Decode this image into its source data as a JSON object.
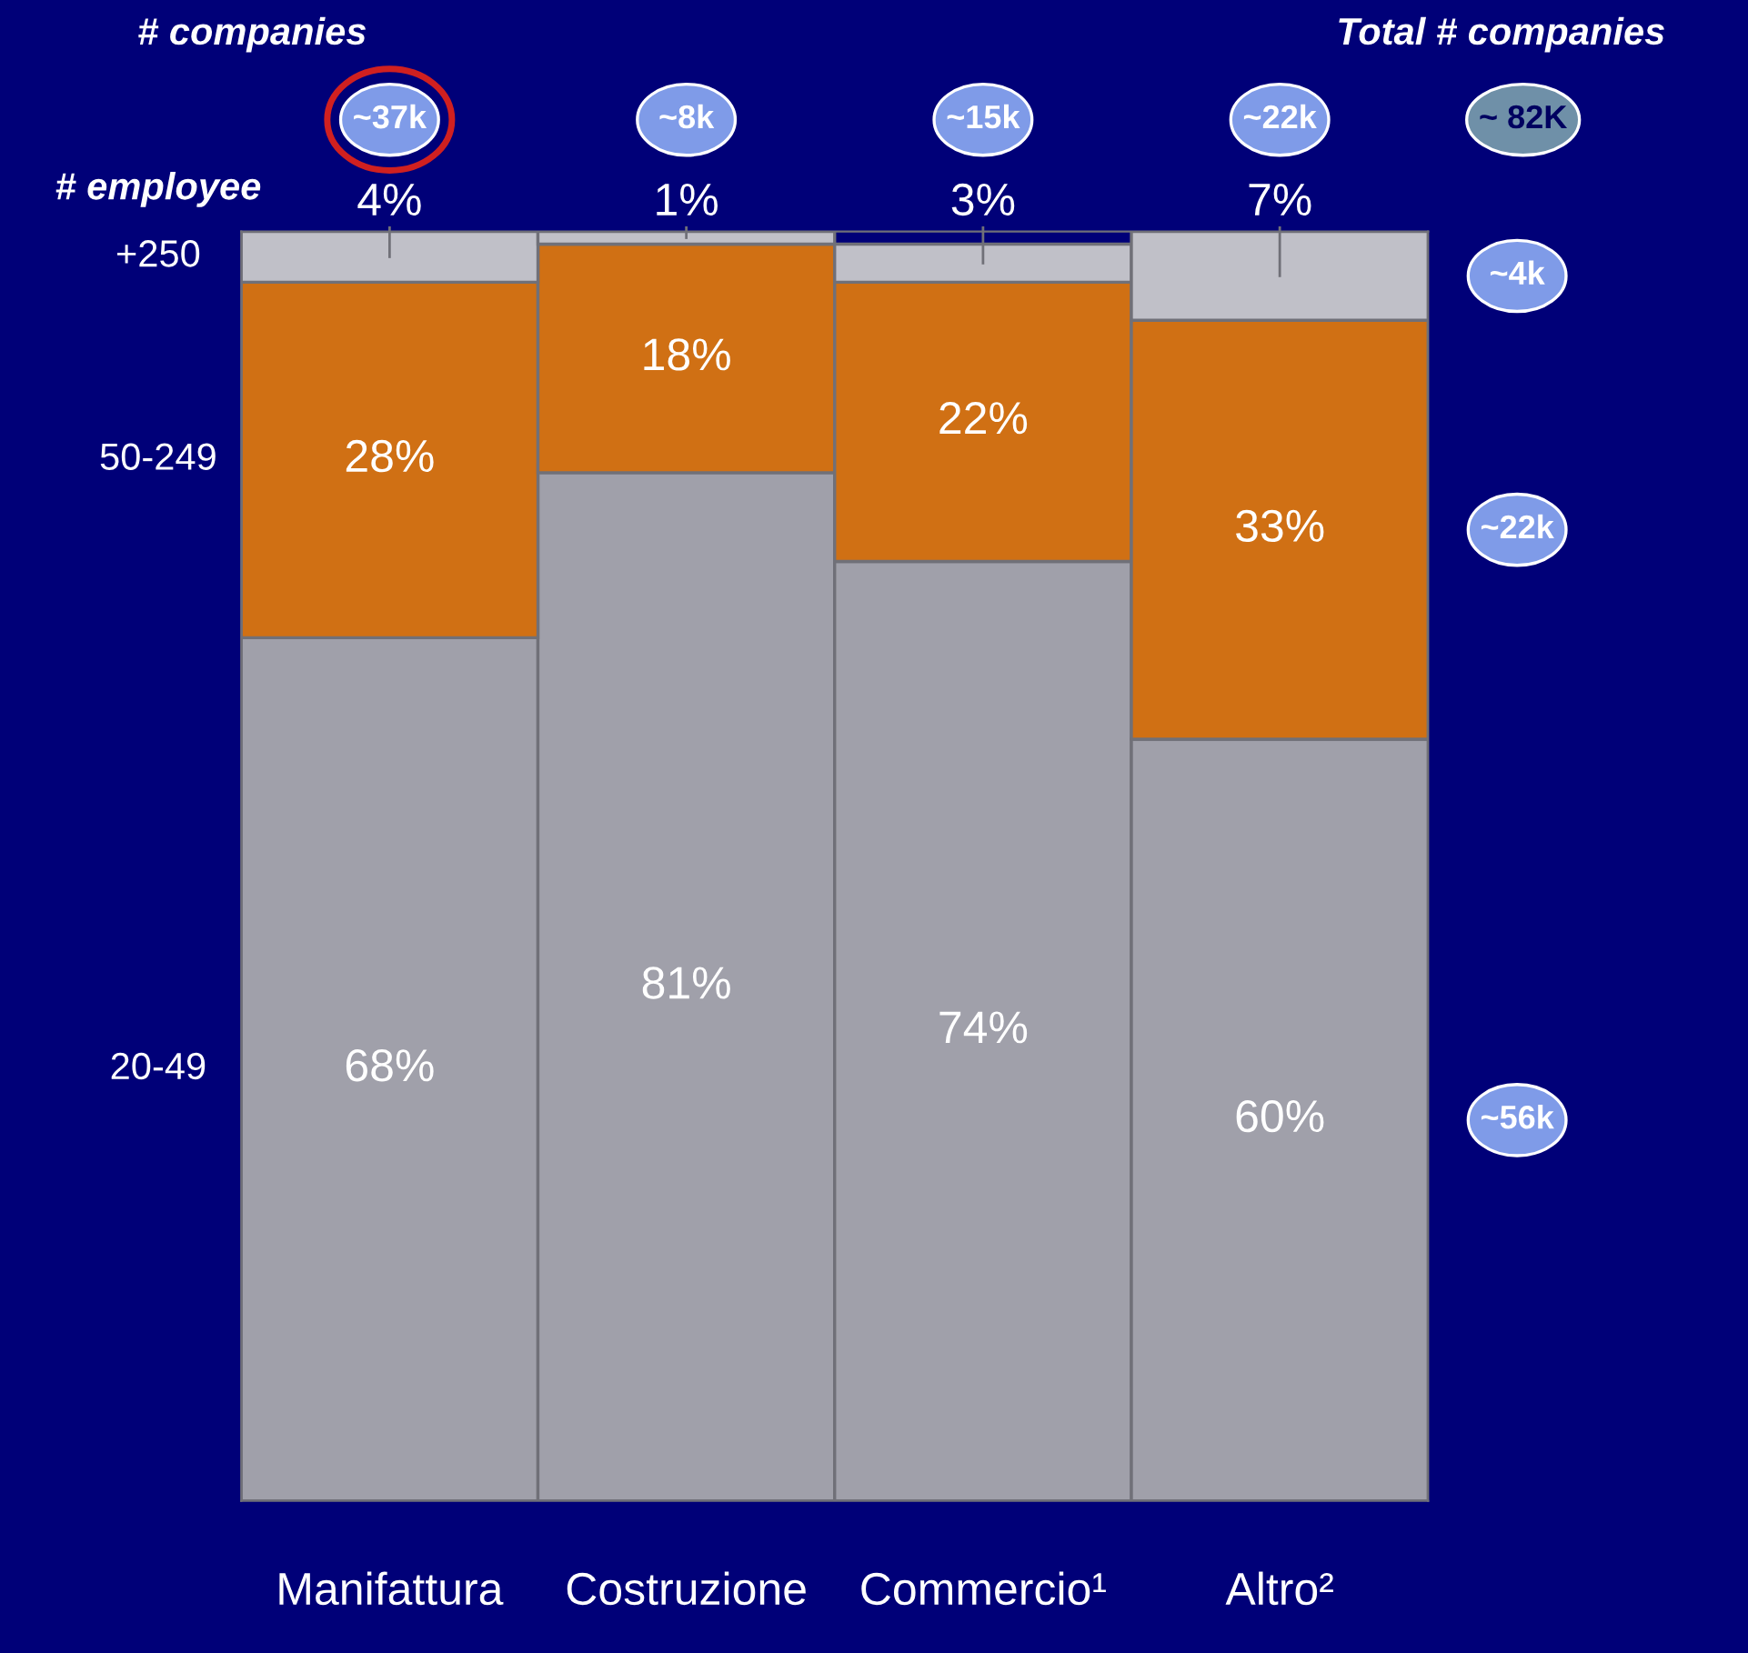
{
  "chart_data": {
    "type": "bar",
    "stacked": true,
    "categories": [
      "Manifattura",
      "Costruzione",
      "Commercio¹",
      "Altro²"
    ],
    "series": [
      {
        "name": "20-49",
        "color": "#a0a0aa",
        "values": [
          68,
          81,
          74,
          60
        ],
        "value_labels": [
          "68%",
          "81%",
          "74%",
          "60%"
        ]
      },
      {
        "name": "50-249",
        "color": "#d07014",
        "values": [
          28,
          18,
          22,
          33
        ],
        "value_labels": [
          "28%",
          "18%",
          "22%",
          "33%"
        ]
      },
      {
        "name": "+250",
        "color": "#c0c0c8",
        "values": [
          4,
          1,
          3,
          7
        ],
        "value_labels": [
          "4%",
          "1%",
          "3%",
          "7%"
        ]
      }
    ],
    "tick_labels": "x",
    "legend": false,
    "grid": false,
    "annotations": [
      "# companies",
      "Total # companies",
      "~ 82K",
      "~37k",
      "~8k",
      "~15k",
      "~22k",
      "~56k",
      "~22k",
      "~4k",
      "# employee"
    ]
  }
}
